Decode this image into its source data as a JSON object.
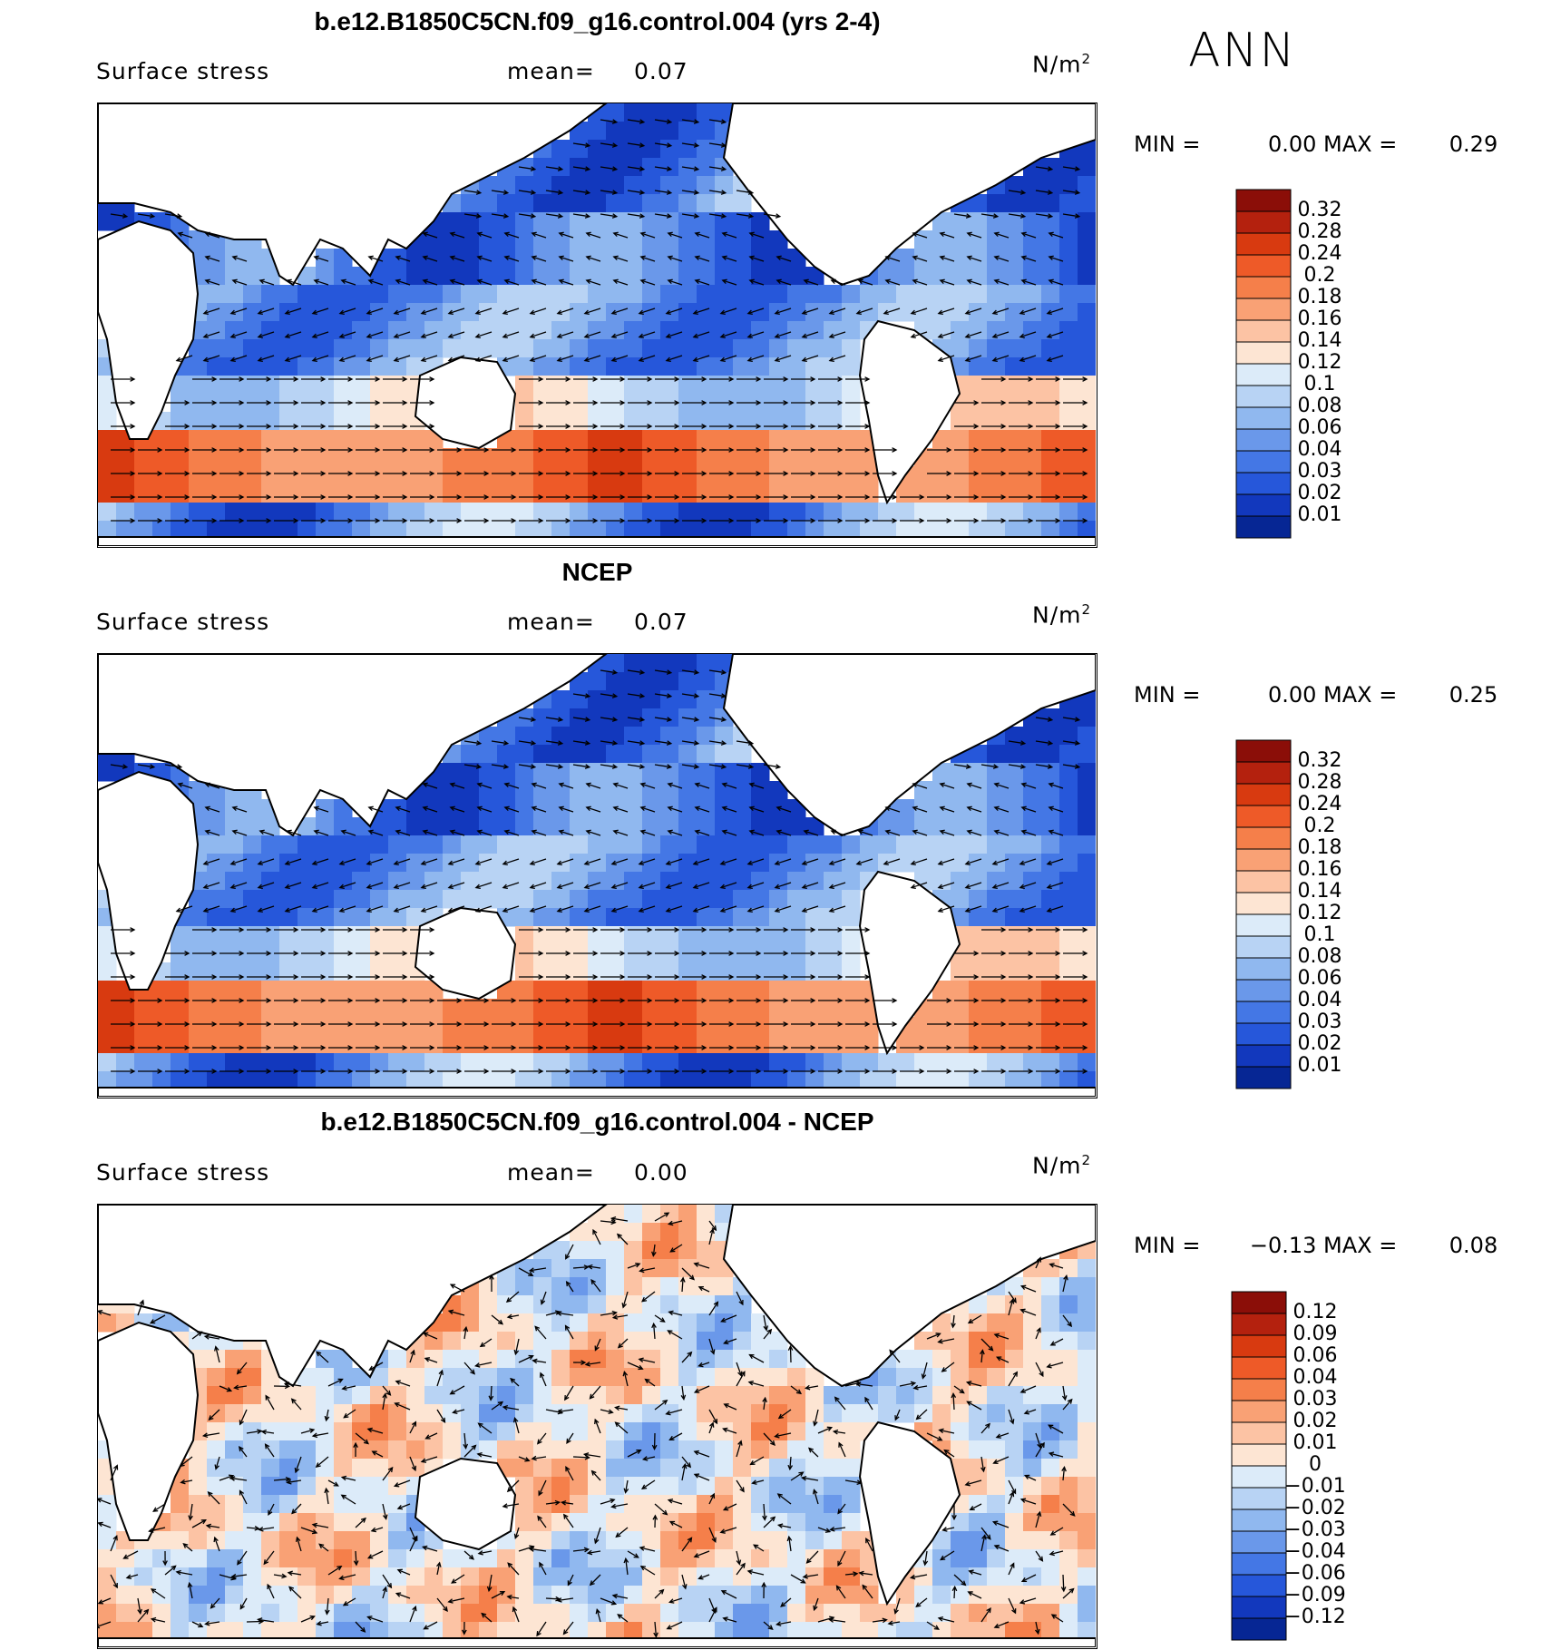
{
  "season": "ANN",
  "units": "N/m²",
  "units_main": "N/m",
  "units_sup": "2",
  "panels": [
    {
      "title": "b.e12.B1850C5CN.f09_g16.control.004 (yrs 2-4)",
      "variable": "Surface stress",
      "mean_label": "mean=",
      "mean_value": "0.07",
      "min_label": "MIN =",
      "min_value": "0.00",
      "max_label": "MAX =",
      "max_value": "0.29",
      "colorbar": {
        "labels": [
          "0.32",
          "0.28",
          "0.24",
          "0.2",
          "0.18",
          "0.16",
          "0.14",
          "0.12",
          "0.1",
          "0.08",
          "0.06",
          "0.04",
          "0.03",
          "0.02",
          "0.01"
        ],
        "colors": [
          "#8b0e08",
          "#b4210e",
          "#d83a10",
          "#ee5a28",
          "#f57f4a",
          "#f9a175",
          "#fcc3a4",
          "#fde5d3",
          "#dcebf9",
          "#b8d3f4",
          "#90b8ef",
          "#6a98ea",
          "#4477e5",
          "#2657da",
          "#1238bd",
          "#062694"
        ]
      }
    },
    {
      "title": "NCEP",
      "variable": "Surface stress",
      "mean_label": "mean=",
      "mean_value": "0.07",
      "min_label": "MIN =",
      "min_value": "0.00",
      "max_label": "MAX =",
      "max_value": "0.25",
      "colorbar": {
        "labels": [
          "0.32",
          "0.28",
          "0.24",
          "0.2",
          "0.18",
          "0.16",
          "0.14",
          "0.12",
          "0.1",
          "0.08",
          "0.06",
          "0.04",
          "0.03",
          "0.02",
          "0.01"
        ],
        "colors": [
          "#8b0e08",
          "#b4210e",
          "#d83a10",
          "#ee5a28",
          "#f57f4a",
          "#f9a175",
          "#fcc3a4",
          "#fde5d3",
          "#dcebf9",
          "#b8d3f4",
          "#90b8ef",
          "#6a98ea",
          "#4477e5",
          "#2657da",
          "#1238bd",
          "#062694"
        ]
      }
    },
    {
      "title": "b.e12.B1850C5CN.f09_g16.control.004 - NCEP",
      "variable": "Surface stress",
      "mean_label": "mean=",
      "mean_value": "0.00",
      "min_label": "MIN =",
      "min_value": "−0.13",
      "max_label": "MAX =",
      "max_value": "0.08",
      "colorbar": {
        "labels": [
          "0.12",
          "0.09",
          "0.06",
          "0.04",
          "0.03",
          "0.02",
          "0.01",
          "0",
          "−0.01",
          "−0.02",
          "−0.03",
          "−0.04",
          "−0.06",
          "−0.09",
          "−0.12"
        ],
        "colors": [
          "#8b0e08",
          "#b4210e",
          "#d83a10",
          "#ee5a28",
          "#f57f4a",
          "#f9a175",
          "#fcc3a4",
          "#fde5d3",
          "#dcebf9",
          "#b8d3f4",
          "#90b8ef",
          "#6a98ea",
          "#4477e5",
          "#2657da",
          "#1238bd",
          "#062694"
        ]
      }
    }
  ],
  "colors": {
    "ocean_low": "#062694",
    "ocean_mid": "#6a98ea",
    "ocean_high": "#d83a10",
    "land": "#ffffff",
    "coast": "#000000"
  }
}
